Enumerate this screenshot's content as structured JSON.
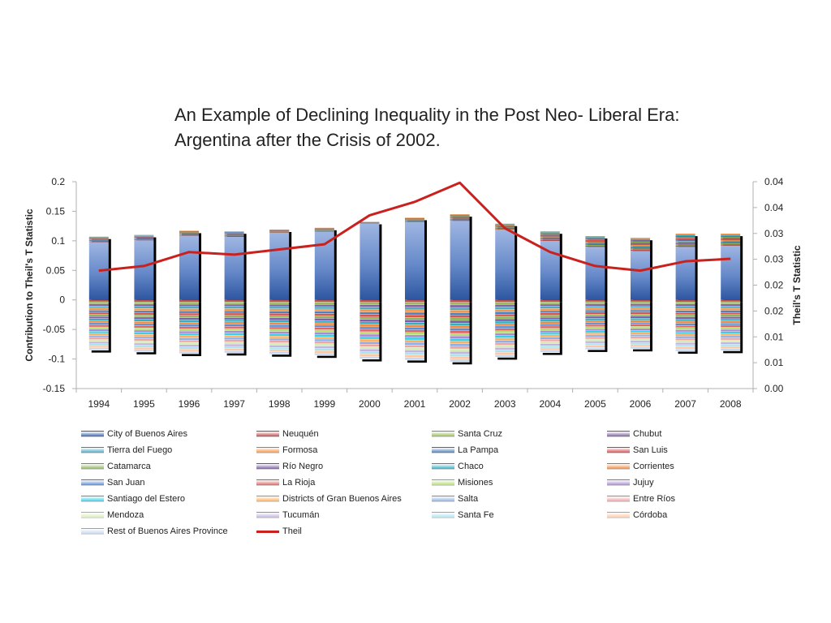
{
  "title": {
    "line1": "An Example of Declining Inequality in the Post Neo- Liberal Era:",
    "line2": "Argentina after the Crisis of 2002."
  },
  "chart_data": {
    "type": "bar",
    "subtype": "stacked bar with secondary-axis line",
    "title": "An Example of Declining Inequality in the Post Neo- Liberal Era: Argentina after the Crisis of 2002.",
    "xlabel": "",
    "ylabel": "Contribution to Theil's T Statistic",
    "y2label": "Theil's T Statistic",
    "ylim": [
      -0.15,
      0.2
    ],
    "y2lim": [
      0,
      0.04
    ],
    "y_ticks": [
      "0.2",
      "0.15",
      "0.1",
      "0.05",
      "0",
      "-0.05",
      "-0.1",
      "-0.15"
    ],
    "y2_ticks": [
      "0.04",
      "0.04",
      "0.03",
      "0.03",
      "0.02",
      "0.02",
      "0.01",
      "0.01",
      "0.00"
    ],
    "categories": [
      "1994",
      "1995",
      "1996",
      "1997",
      "1998",
      "1999",
      "2000",
      "2001",
      "2002",
      "2003",
      "2004",
      "2005",
      "2006",
      "2007",
      "2008"
    ],
    "grid": false,
    "legend_position": "bottom",
    "positive_totals": [
      0.107,
      0.11,
      0.117,
      0.116,
      0.119,
      0.122,
      0.132,
      0.139,
      0.145,
      0.129,
      0.116,
      0.108,
      0.105,
      0.112,
      0.112
    ],
    "negative_totals": [
      -0.085,
      -0.088,
      -0.091,
      -0.09,
      -0.092,
      -0.094,
      -0.1,
      -0.102,
      -0.105,
      -0.097,
      -0.089,
      -0.084,
      -0.083,
      -0.087,
      -0.086
    ],
    "series": [
      {
        "name": "City of Buenos Aires",
        "color": "#3E68B0",
        "values": [
          0.098,
          0.101,
          0.109,
          0.107,
          0.114,
          0.116,
          0.13,
          0.132,
          0.134,
          0.119,
          0.1,
          0.09,
          0.083,
          0.09,
          0.092
        ]
      },
      {
        "name": "Neuquén",
        "color": "#C0504D"
      },
      {
        "name": "Santa Cruz",
        "color": "#9BBB59"
      },
      {
        "name": "Chubut",
        "color": "#8064A2"
      },
      {
        "name": "Tierra del Fuego",
        "color": "#4BACC6"
      },
      {
        "name": "Formosa",
        "color": "#F79646"
      },
      {
        "name": "La Pampa",
        "color": "#4F81BD"
      },
      {
        "name": "San Luis",
        "color": "#D9534F"
      },
      {
        "name": "Catamarca",
        "color": "#8DB65A"
      },
      {
        "name": "Río Negro",
        "color": "#7E5FA8"
      },
      {
        "name": "Chaco",
        "color": "#31B0C6"
      },
      {
        "name": "Corrientes",
        "color": "#F5883A"
      },
      {
        "name": "San Juan",
        "color": "#5B8FD6"
      },
      {
        "name": "La Rioja",
        "color": "#E06666"
      },
      {
        "name": "Misiones",
        "color": "#B5DD6F"
      },
      {
        "name": "Jujuy",
        "color": "#A98CD0"
      },
      {
        "name": "Santiago del Estero",
        "color": "#38D0E8"
      },
      {
        "name": "Districts of Gran Buenos Aires",
        "color": "#FFAE5C"
      },
      {
        "name": "Salta",
        "color": "#8FB0E6"
      },
      {
        "name": "Entre Ríos",
        "color": "#F0A3A3"
      },
      {
        "name": "Mendoza",
        "color": "#D7ECB5"
      },
      {
        "name": "Tucumán",
        "color": "#C3B4E0"
      },
      {
        "name": "Santa Fe",
        "color": "#A9E4F0"
      },
      {
        "name": "Córdoba",
        "color": "#FFC8A3"
      },
      {
        "name": "Rest of Buenos Aires Province",
        "color": "#C6D7F2"
      }
    ],
    "line_series": {
      "name": "Theil",
      "axis": "secondary",
      "color": "#C9211E",
      "values": [
        0.0228,
        0.0237,
        0.0264,
        0.0259,
        0.0269,
        0.0279,
        0.0335,
        0.0361,
        0.0398,
        0.031,
        0.0264,
        0.0237,
        0.0228,
        0.0246,
        0.0251
      ]
    }
  },
  "legend": [
    {
      "label": "City of Buenos Aires",
      "color": "#3E68B0",
      "kind": "bar"
    },
    {
      "label": "Neuquén",
      "color": "#C0504D",
      "kind": "bar"
    },
    {
      "label": "Santa Cruz",
      "color": "#9BBB59",
      "kind": "bar"
    },
    {
      "label": "Chubut",
      "color": "#8064A2",
      "kind": "bar"
    },
    {
      "label": "Tierra del Fuego",
      "color": "#4BACC6",
      "kind": "bar"
    },
    {
      "label": "Formosa",
      "color": "#F79646",
      "kind": "bar"
    },
    {
      "label": "La Pampa",
      "color": "#4F81BD",
      "kind": "bar"
    },
    {
      "label": "San Luis",
      "color": "#D9534F",
      "kind": "bar"
    },
    {
      "label": "Catamarca",
      "color": "#8DB65A",
      "kind": "bar"
    },
    {
      "label": "Río Negro",
      "color": "#7E5FA8",
      "kind": "bar"
    },
    {
      "label": "Chaco",
      "color": "#31B0C6",
      "kind": "bar"
    },
    {
      "label": "Corrientes",
      "color": "#F5883A",
      "kind": "bar"
    },
    {
      "label": "San Juan",
      "color": "#5B8FD6",
      "kind": "bar"
    },
    {
      "label": "La Rioja",
      "color": "#E06666",
      "kind": "bar"
    },
    {
      "label": "Misiones",
      "color": "#B5DD6F",
      "kind": "bar"
    },
    {
      "label": "Jujuy",
      "color": "#A98CD0",
      "kind": "bar"
    },
    {
      "label": "Santiago del Estero",
      "color": "#38D0E8",
      "kind": "bar"
    },
    {
      "label": "Districts of Gran Buenos Aires",
      "color": "#FFAE5C",
      "kind": "bar"
    },
    {
      "label": "Salta",
      "color": "#8FB0E6",
      "kind": "bar"
    },
    {
      "label": "Entre Ríos",
      "color": "#F0A3A3",
      "kind": "bar"
    },
    {
      "label": "Mendoza",
      "color": "#D7ECB5",
      "kind": "bar"
    },
    {
      "label": "Tucumán",
      "color": "#C3B4E0",
      "kind": "bar"
    },
    {
      "label": "Santa Fe",
      "color": "#A9E4F0",
      "kind": "bar"
    },
    {
      "label": "Córdoba",
      "color": "#FFC8A3",
      "kind": "bar"
    },
    {
      "label": "Rest of Buenos Aires Province",
      "color": "#C6D7F2",
      "kind": "bar"
    },
    {
      "label": "Theil",
      "color": "#C9211E",
      "kind": "line"
    }
  ]
}
